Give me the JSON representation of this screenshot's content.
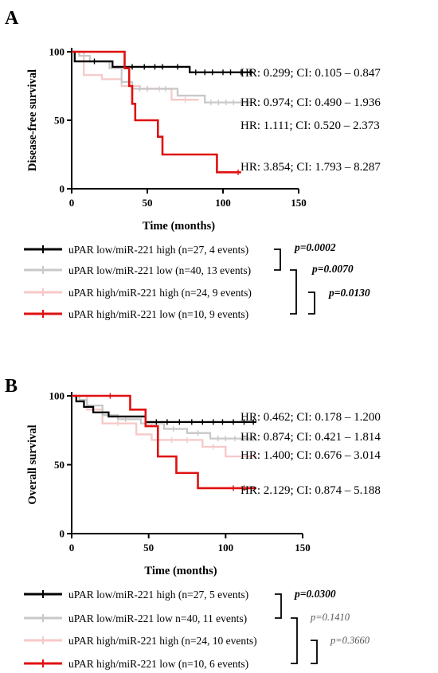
{
  "chart_data": [
    {
      "panel": "A",
      "type": "line",
      "ylabel": "Disease-free survival",
      "xlabel": "Time (months)",
      "xlim": [
        0,
        150
      ],
      "ylim": [
        0,
        100
      ],
      "xticks": [
        0,
        50,
        100,
        150
      ],
      "yticks": [
        0,
        50,
        100
      ],
      "series": [
        {
          "name": "uPAR low/miR-221 high (n=27, 4 events)",
          "color": "#000000",
          "steps": [
            [
              0,
              100
            ],
            [
              2,
              93
            ],
            [
              27,
              89
            ],
            [
              78,
              85
            ],
            [
              120,
              85
            ]
          ],
          "censors": [
            15,
            40,
            48,
            55,
            60,
            70,
            82,
            88,
            93,
            100,
            105,
            112,
            118
          ],
          "hr": "HR: 0.299; CI: 0.105 – 0.847"
        },
        {
          "name": "uPAR low/miR-221 low (n=40, 13 events)",
          "color": "#c8c8c8",
          "steps": [
            [
              0,
              100
            ],
            [
              5,
              97
            ],
            [
              12,
              93
            ],
            [
              25,
              88
            ],
            [
              33,
              78
            ],
            [
              40,
              73
            ],
            [
              55,
              73
            ],
            [
              70,
              68
            ],
            [
              88,
              63
            ],
            [
              120,
              63
            ]
          ],
          "censors": [
            45,
            50,
            62,
            92,
            97,
            102,
            107,
            112,
            117
          ],
          "hr": "HR: 0.974; CI: 0.490 – 1.936"
        },
        {
          "name": "uPAR high/miR-221 high (n=24, 9 events)",
          "color": "#f6c8c8",
          "steps": [
            [
              0,
              100
            ],
            [
              8,
              83
            ],
            [
              20,
              80
            ],
            [
              33,
              75
            ],
            [
              45,
              73
            ],
            [
              66,
              65
            ],
            [
              84,
              65
            ]
          ],
          "censors": [
            50,
            58,
            75
          ],
          "hr": "HR: 1.111; CI: 0.520 – 2.373"
        },
        {
          "name": "uPAR high/miR-221 low (n=10, 9 events)",
          "color": "#e01010",
          "steps": [
            [
              0,
              100
            ],
            [
              12,
              100
            ],
            [
              35,
              88
            ],
            [
              38,
              75
            ],
            [
              40,
              62
            ],
            [
              42,
              50
            ],
            [
              57,
              38
            ],
            [
              60,
              25
            ],
            [
              96,
              12
            ],
            [
              112,
              12
            ]
          ],
          "censors": [
            110
          ],
          "hr": "HR: 3.854; CI: 1.793 – 8.287"
        }
      ],
      "comparisons": [
        {
          "label": "p=0.0002",
          "style": "bold"
        },
        {
          "label": "p=0.0070",
          "style": "bold"
        },
        {
          "label": "p=0.0130",
          "style": "bold"
        }
      ]
    },
    {
      "panel": "B",
      "type": "line",
      "ylabel": "Overall survival",
      "xlabel": "Time (months)",
      "xlim": [
        0,
        150
      ],
      "ylim": [
        0,
        100
      ],
      "xticks": [
        0,
        50,
        100,
        150
      ],
      "yticks": [
        0,
        50,
        100
      ],
      "series": [
        {
          "name": "uPAR low/miR-221 high (n=27, 5 events)",
          "color": "#000000",
          "steps": [
            [
              0,
              100
            ],
            [
              3,
              96
            ],
            [
              8,
              92
            ],
            [
              14,
              88
            ],
            [
              24,
              85
            ],
            [
              42,
              85
            ],
            [
              48,
              81
            ],
            [
              120,
              81
            ]
          ],
          "censors": [
            55,
            62,
            70,
            78,
            85,
            92,
            98,
            105,
            112,
            118
          ],
          "hr": "HR: 0.462; CI: 0.178 – 1.200"
        },
        {
          "name": "uPAR low/miR-221 low n=40, 11 events)",
          "color": "#c8c8c8",
          "steps": [
            [
              0,
              100
            ],
            [
              5,
              97
            ],
            [
              10,
              93
            ],
            [
              20,
              86
            ],
            [
              30,
              83
            ],
            [
              45,
              80
            ],
            [
              60,
              76
            ],
            [
              75,
              73
            ],
            [
              90,
              69
            ],
            [
              120,
              69
            ]
          ],
          "censors": [
            35,
            52,
            66,
            82,
            95,
            100,
            106,
            112,
            118
          ],
          "hr": "HR: 0.874; CI: 0.421 – 1.814"
        },
        {
          "name": "uPAR high/miR-221 high (n=24, 10 events)",
          "color": "#f6c8c8",
          "steps": [
            [
              0,
              100
            ],
            [
              10,
              90
            ],
            [
              20,
              80
            ],
            [
              42,
              72
            ],
            [
              52,
              68
            ],
            [
              85,
              63
            ],
            [
              100,
              56
            ],
            [
              120,
              56
            ]
          ],
          "censors": [
            30,
            65,
            75,
            92
          ],
          "hr": "HR: 1.400; CI:  0.676 – 3.014"
        },
        {
          "name": "uPAR high/miR-221 low (n=10, 6 events)",
          "color": "#e01010",
          "steps": [
            [
              0,
              100
            ],
            [
              12,
              100
            ],
            [
              38,
              90
            ],
            [
              48,
              78
            ],
            [
              56,
              56
            ],
            [
              68,
              44
            ],
            [
              82,
              33
            ],
            [
              120,
              33
            ]
          ],
          "censors": [
            25,
            105,
            112
          ],
          "hr": "HR: 2.129; CI: 0.874 – 5.188"
        }
      ],
      "comparisons": [
        {
          "label": "p=0.0300",
          "style": "bold"
        },
        {
          "label": "p=0.1410",
          "style": "faded"
        },
        {
          "label": "p=0.3660",
          "style": "faded"
        }
      ]
    }
  ]
}
